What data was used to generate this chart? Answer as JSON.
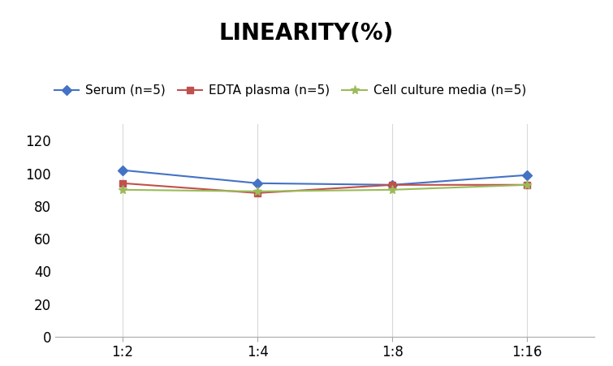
{
  "title": "LINEARITY(%)",
  "x_labels": [
    "1:2",
    "1:4",
    "1:8",
    "1:16"
  ],
  "x_positions": [
    0,
    1,
    2,
    3
  ],
  "series": [
    {
      "label": "Serum (n=5)",
      "values": [
        102,
        94,
        93,
        99
      ],
      "color": "#4472C4",
      "marker": "D",
      "markersize": 6
    },
    {
      "label": "EDTA plasma (n=5)",
      "values": [
        94,
        88,
        93,
        93
      ],
      "color": "#C0504D",
      "marker": "s",
      "markersize": 6
    },
    {
      "label": "Cell culture media (n=5)",
      "values": [
        90,
        89,
        90,
        93
      ],
      "color": "#9BBB59",
      "marker": "*",
      "markersize": 8
    }
  ],
  "ylim": [
    0,
    130
  ],
  "yticks": [
    0,
    20,
    40,
    60,
    80,
    100,
    120
  ],
  "grid_color": "#D9D9D9",
  "background_color": "#FFFFFF",
  "title_fontsize": 20,
  "legend_fontsize": 11,
  "tick_fontsize": 12
}
